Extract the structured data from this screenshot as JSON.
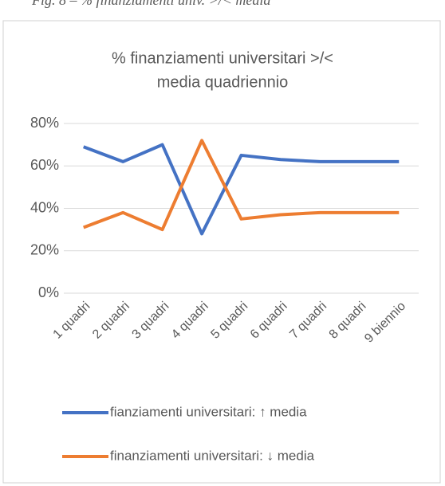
{
  "caption": "Fig. 8 – % finanziamenti univ. >/< media",
  "chart_data": {
    "type": "line",
    "title": [
      "% finanziamenti universitari >/<",
      "media quadriennio"
    ],
    "categories": [
      "1 quadri",
      "2 quadri",
      "3 quadri",
      "4 quadri",
      "5 quadri",
      "6 quadri",
      "7 quadri",
      "8 quadri",
      "9 biennio"
    ],
    "series": [
      {
        "name": "fianziamenti universitari: ↑ media",
        "color": "#4472c4",
        "values": [
          69,
          62,
          70,
          28,
          65,
          63,
          62,
          62,
          62
        ]
      },
      {
        "name": "finanziamenti universitari: ↓ media",
        "color": "#ed7d31",
        "values": [
          31,
          38,
          30,
          72,
          35,
          37,
          38,
          38,
          38
        ]
      }
    ],
    "ylim": [
      0,
      80
    ],
    "yticks": [
      {
        "value": 0,
        "label": "0%"
      },
      {
        "value": 20,
        "label": "20%"
      },
      {
        "value": 40,
        "label": "40%"
      },
      {
        "value": 60,
        "label": "60%"
      },
      {
        "value": 80,
        "label": "80%"
      }
    ],
    "grid": true,
    "legend": "bottom"
  }
}
